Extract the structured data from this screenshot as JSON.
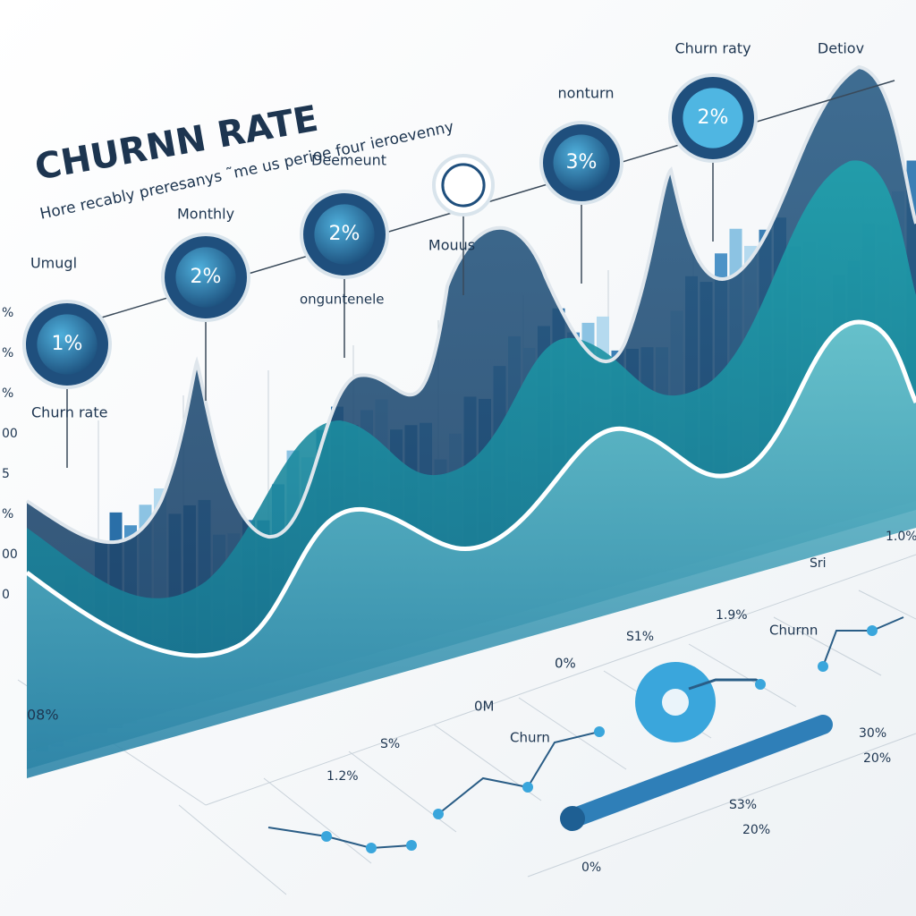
{
  "header": {
    "title": "CHURNN RATE",
    "subtitle": "Hore recably preresanys ˜me us perioe four ieroevenny"
  },
  "bubbles": [
    {
      "label": "Umugl",
      "value": "1%"
    },
    {
      "label": "Monthly",
      "value": "2%"
    },
    {
      "label": "Deemeunt",
      "value": "2%"
    },
    {
      "label": "Mouus"
    },
    {
      "label": "nonturn",
      "value": "3%"
    },
    {
      "label": "Churn raty",
      "value": "2%"
    },
    {
      "label": "Detiov"
    }
  ],
  "labels": [
    "Churn rate",
    "onguntenele",
    "08%",
    "0M",
    "0%",
    "S1%",
    "1.9%",
    "Sri",
    "1.0%",
    "Churnn",
    "Churn",
    "S%",
    "1.2%",
    "30%",
    "20%",
    "S3%",
    "20%",
    "0%"
  ],
  "axis_labels": [
    "%",
    "%",
    "%",
    "00",
    "5",
    "%",
    "00",
    "0"
  ]
}
